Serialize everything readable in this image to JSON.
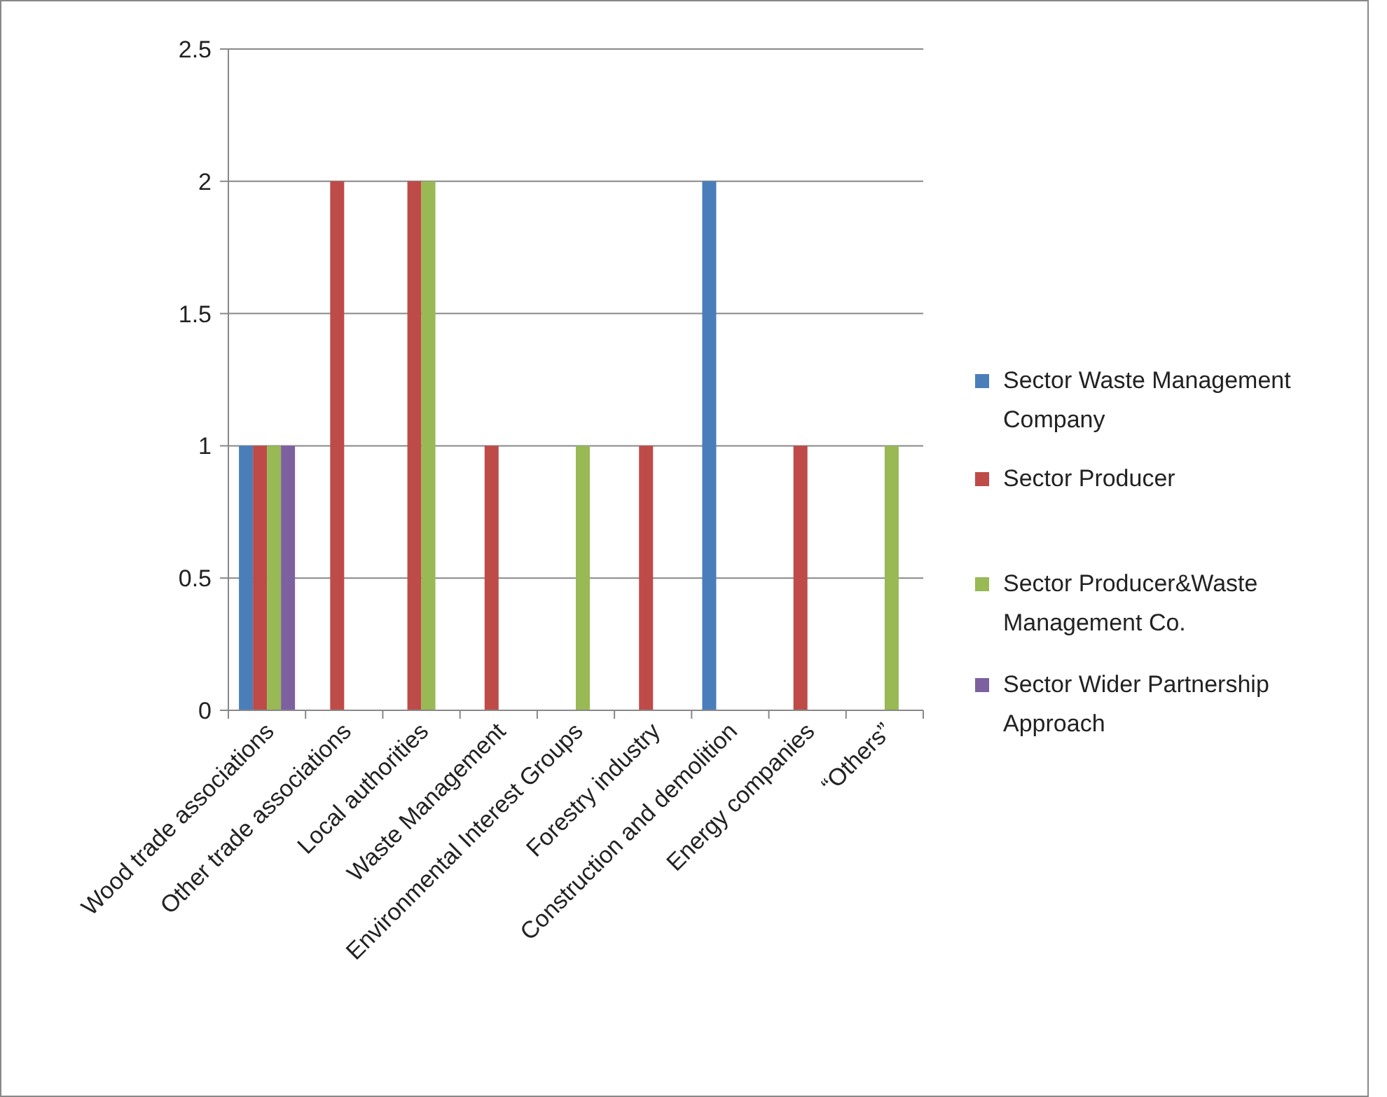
{
  "chart_data": {
    "type": "bar",
    "categories": [
      "Wood trade associations",
      "Other trade associations",
      "Local authorities",
      "Waste Management",
      "Environmental Interest Groups",
      "Forestry industry",
      "Construction and demolition",
      "Energy companies",
      "“Others”"
    ],
    "series": [
      {
        "name": "Sector Waste Management Company",
        "color": "#4a7ebb",
        "values": [
          1,
          0,
          0,
          0,
          0,
          0,
          2,
          0,
          0
        ]
      },
      {
        "name": "Sector Producer",
        "color": "#be4b48",
        "values": [
          1,
          2,
          2,
          1,
          0,
          1,
          0,
          1,
          0
        ]
      },
      {
        "name": "Sector Producer&Waste Management Co.",
        "color": "#98b954",
        "values": [
          1,
          0,
          2,
          0,
          1,
          0,
          0,
          0,
          1
        ]
      },
      {
        "name": "Sector Wider Partnership Approach",
        "color": "#7d60a0",
        "values": [
          1,
          0,
          0,
          0,
          0,
          0,
          0,
          0,
          0
        ]
      }
    ],
    "ylim": [
      0,
      2.5
    ],
    "yticks": [
      0,
      0.5,
      1,
      1.5,
      2,
      2.5
    ],
    "grid": "y",
    "legend": "right"
  }
}
